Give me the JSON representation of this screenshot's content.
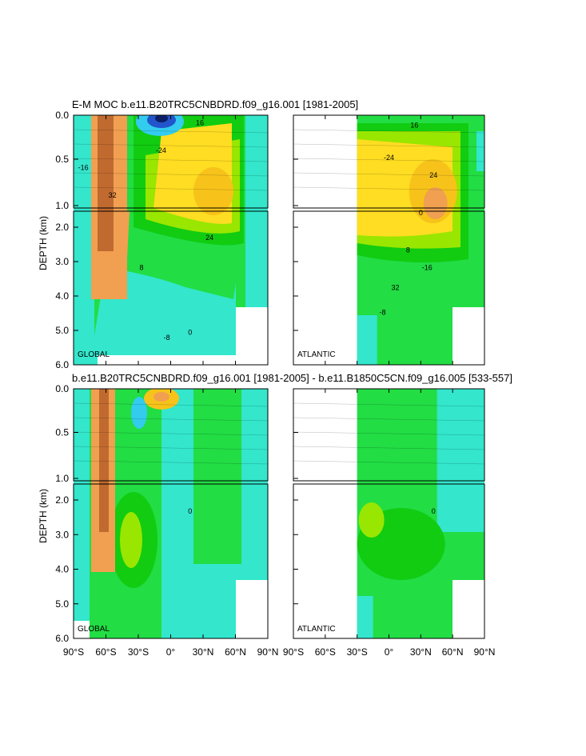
{
  "top_title": "E-M MOC  b.e11.B20TRC5CNBDRD.f09_g16.001 [1981-2005]",
  "bottom_title": "b.e11.B20TRC5CNBDRD.f09_g16.001 [1981-2005] - b.e11.B1850C5CN.f09_g16.005 [533-557]",
  "ylabel": "DEPTH (km)",
  "basins": {
    "global": "GLOBAL",
    "atlantic": "ATLANTIC"
  },
  "colors": {
    "cyan": "#33e6cc",
    "lightgreen": "#22dd44",
    "green": "#11cc11",
    "darkgreen": "#00a800",
    "lime": "#99e600",
    "yellow": "#ffdd22",
    "gold": "#f7c31a",
    "orange": "#f0a050",
    "brown": "#c06a30",
    "blue": "#2255cc",
    "navy": "#0b1e66",
    "skyblue": "#33ccee"
  },
  "chart_data": [
    {
      "type": "heatmap",
      "title": "E-M MOC  b.e11.B20TRC5CNBDRD.f09_g16.001 [1981-2005]",
      "panels": [
        {
          "basin": "GLOBAL",
          "xlim": [
            -90,
            90
          ],
          "ylim": [
            6.0,
            0.0
          ]
        },
        {
          "basin": "ATLANTIC",
          "xlim": [
            -90,
            90
          ],
          "ylim": [
            6.0,
            0.0
          ],
          "data_start_lat": -30
        }
      ],
      "ylabel": "DEPTH (km)",
      "y_ticks_upper": [
        "0.0",
        "0.5",
        "1.0"
      ],
      "y_ticks_lower": [
        "2.0",
        "3.0",
        "4.0",
        "5.0",
        "6.0"
      ],
      "contour_labels": [
        "0",
        "8",
        "16",
        "24",
        "32",
        "-8",
        "-16",
        "-24"
      ]
    },
    {
      "type": "heatmap",
      "title": "b.e11.B20TRC5CNBDRD.f09_g16.001 [1981-2005] - b.e11.B1850C5CN.f09_g16.005 [533-557]",
      "panels": [
        {
          "basin": "GLOBAL",
          "xlim": [
            -90,
            90
          ],
          "ylim": [
            6.0,
            0.0
          ]
        },
        {
          "basin": "ATLANTIC",
          "xlim": [
            -90,
            90
          ],
          "ylim": [
            6.0,
            0.0
          ],
          "data_start_lat": -30
        }
      ],
      "ylabel": "DEPTH (km)",
      "x_ticks": [
        "90°S",
        "60°S",
        "30°S",
        "0°",
        "30°N",
        "60°N",
        "90°N"
      ],
      "y_ticks_upper": [
        "0.0",
        "0.5",
        "1.0"
      ],
      "y_ticks_lower": [
        "2.0",
        "3.0",
        "4.0",
        "5.0",
        "6.0"
      ],
      "contour_labels": [
        "0"
      ]
    }
  ]
}
